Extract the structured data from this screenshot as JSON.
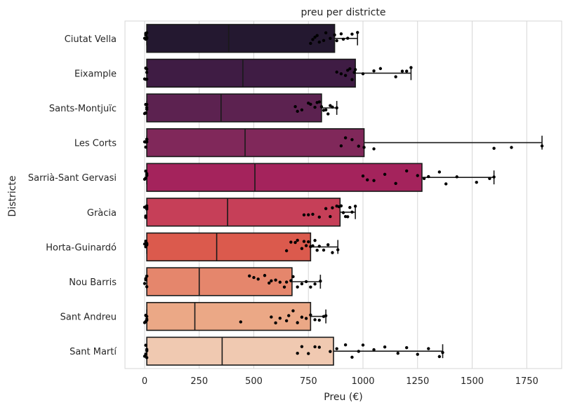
{
  "chart_data": {
    "type": "box+strip",
    "title": "preu per districte",
    "xlabel": "Preu (€)",
    "ylabel": "Districte",
    "xlim": [
      -90,
      1910
    ],
    "xticks": [
      0,
      250,
      500,
      750,
      1000,
      1250,
      1500,
      1750
    ],
    "grid": "vertical",
    "categories": [
      "Ciutat Vella",
      "Eixample",
      "Sants-Montjuïc",
      "Les Corts",
      "Sarrià-Sant Gervasi",
      "Gràcia",
      "Horta-Guinardó",
      "Nou Barris",
      "Sant Andreu",
      "Sant Martí"
    ],
    "colors": [
      "#241830",
      "#3f1c44",
      "#5c2250",
      "#80285a",
      "#a4235c",
      "#c63f58",
      "#db5a4d",
      "#e5866c",
      "#eba886",
      "#f0c9b1"
    ],
    "boxes": [
      {
        "min": 10,
        "q1": 10,
        "median": 385,
        "q3": 870,
        "max": 975
      },
      {
        "min": 10,
        "q1": 10,
        "median": 450,
        "q3": 965,
        "max": 1220
      },
      {
        "min": 10,
        "q1": 10,
        "median": 350,
        "q3": 810,
        "max": 880
      },
      {
        "min": 10,
        "q1": 10,
        "median": 460,
        "q3": 1005,
        "max": 1820
      },
      {
        "min": 10,
        "q1": 10,
        "median": 505,
        "q3": 1270,
        "max": 1600
      },
      {
        "min": 10,
        "q1": 10,
        "median": 380,
        "q3": 895,
        "max": 965
      },
      {
        "min": 10,
        "q1": 10,
        "median": 330,
        "q3": 760,
        "max": 885
      },
      {
        "min": 10,
        "q1": 10,
        "median": 250,
        "q3": 675,
        "max": 805
      },
      {
        "min": 10,
        "q1": 10,
        "median": 230,
        "q3": 760,
        "max": 830
      },
      {
        "min": 10,
        "q1": 10,
        "median": 355,
        "q3": 865,
        "max": 1365
      }
    ],
    "points": [
      [
        0,
        5,
        5,
        5,
        10,
        10,
        10,
        760,
        770,
        780,
        790,
        800,
        820,
        830,
        850,
        870,
        880,
        900,
        910,
        930,
        950,
        975
      ],
      [
        0,
        5,
        5,
        10,
        10,
        10,
        880,
        900,
        920,
        930,
        940,
        950,
        960,
        965,
        1000,
        1050,
        1080,
        1150,
        1180,
        1200,
        1220
      ],
      [
        0,
        5,
        5,
        10,
        10,
        10,
        690,
        700,
        720,
        750,
        760,
        780,
        790,
        800,
        810,
        820,
        830,
        840,
        850,
        860,
        880
      ],
      [
        0,
        5,
        5,
        10,
        10,
        10,
        900,
        920,
        950,
        980,
        1005,
        1050,
        1600,
        1680,
        1820
      ],
      [
        0,
        5,
        5,
        10,
        10,
        10,
        1000,
        1020,
        1050,
        1100,
        1150,
        1200,
        1250,
        1280,
        1300,
        1350,
        1380,
        1430,
        1520,
        1580,
        1600
      ],
      [
        0,
        5,
        5,
        10,
        10,
        10,
        730,
        750,
        770,
        800,
        830,
        850,
        860,
        880,
        890,
        900,
        910,
        920,
        930,
        940,
        950,
        965
      ],
      [
        0,
        5,
        5,
        10,
        10,
        10,
        650,
        670,
        690,
        700,
        720,
        730,
        740,
        750,
        760,
        770,
        780,
        790,
        800,
        820,
        840,
        860,
        885
      ],
      [
        0,
        5,
        5,
        10,
        10,
        10,
        480,
        500,
        520,
        550,
        570,
        580,
        600,
        620,
        640,
        650,
        670,
        680,
        700,
        720,
        740,
        760,
        780,
        805
      ],
      [
        0,
        5,
        5,
        10,
        10,
        10,
        440,
        580,
        600,
        620,
        650,
        660,
        680,
        700,
        720,
        740,
        760,
        780,
        800,
        820,
        830
      ],
      [
        0,
        5,
        5,
        10,
        10,
        10,
        700,
        720,
        750,
        780,
        800,
        850,
        880,
        920,
        950,
        980,
        1000,
        1050,
        1100,
        1160,
        1200,
        1250,
        1300,
        1350,
        1365
      ]
    ]
  }
}
